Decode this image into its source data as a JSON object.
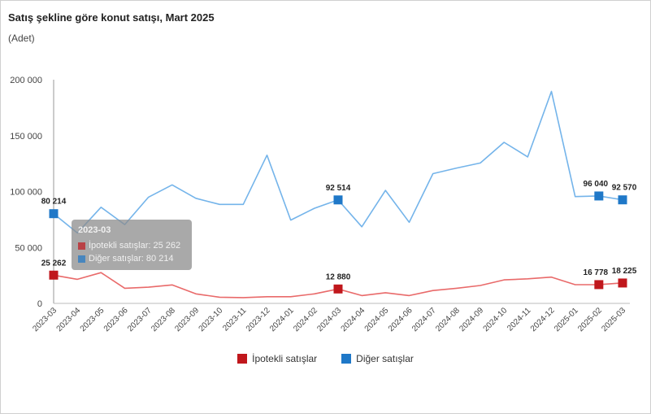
{
  "title": "Satış şekline göre konut satışı, Mart 2025",
  "subtitle": "(Adet)",
  "colors": {
    "ipotekli": "#c0171c",
    "diger": "#1f78c8",
    "diger_line": "#74b4ea",
    "ipotekli_line": "#e96a6a"
  },
  "chart_data": {
    "type": "line",
    "categories": [
      "2023-03",
      "2023-04",
      "2023-05",
      "2023-06",
      "2023-07",
      "2023-08",
      "2023-09",
      "2023-10",
      "2023-11",
      "2023-12",
      "2024-01",
      "2024-02",
      "2024-03",
      "2024-04",
      "2024-05",
      "2024-06",
      "2024-07",
      "2024-08",
      "2024-09",
      "2024-10",
      "2024-11",
      "2024-12",
      "2025-01",
      "2025-02",
      "2025-03"
    ],
    "ylim": [
      0,
      200000
    ],
    "yticks": [
      0,
      50000,
      100000,
      150000,
      200000
    ],
    "ytick_labels": [
      "0",
      "50 000",
      "100 000",
      "150 000",
      "200 000"
    ],
    "grid": false,
    "legend_position": "bottom",
    "series": [
      {
        "name": "İpotekli satışlar",
        "color": "#c0171c",
        "values": [
          25262,
          21500,
          27500,
          13500,
          14500,
          16500,
          8500,
          5500,
          5200,
          6000,
          6000,
          8500,
          12880,
          7000,
          9500,
          7000,
          11500,
          13500,
          16000,
          21000,
          22000,
          23500,
          16700,
          16778,
          18225
        ]
      },
      {
        "name": "Diğer satışlar",
        "color": "#1f78c8",
        "values": [
          80214,
          63000,
          86000,
          70500,
          95000,
          106000,
          94000,
          88500,
          88500,
          132500,
          74500,
          85000,
          92514,
          68500,
          101000,
          72500,
          116000,
          121000,
          125500,
          144000,
          131000,
          189500,
          95500,
          96040,
          92570
        ]
      }
    ],
    "data_labels": [
      {
        "series": 1,
        "index": 0,
        "text": "80 214"
      },
      {
        "series": 1,
        "index": 12,
        "text": "92 514"
      },
      {
        "series": 1,
        "index": 23,
        "text": "96 040"
      },
      {
        "series": 1,
        "index": 24,
        "text": "92 570"
      },
      {
        "series": 0,
        "index": 0,
        "text": "25 262"
      },
      {
        "series": 0,
        "index": 12,
        "text": "12 880"
      },
      {
        "series": 0,
        "index": 23,
        "text": "16 778"
      },
      {
        "series": 0,
        "index": 24,
        "text": "18 225"
      }
    ],
    "markers": [
      0,
      12,
      23,
      24
    ]
  },
  "legend": {
    "items": [
      {
        "label": "İpotekli satışlar",
        "color": "#c0171c"
      },
      {
        "label": "Diğer satışlar",
        "color": "#1f78c8"
      }
    ]
  },
  "tooltip": {
    "title": "2023-03",
    "row1": "İpotekli satışlar: 25 262",
    "row2": "Diğer satışlar: 80 214"
  }
}
